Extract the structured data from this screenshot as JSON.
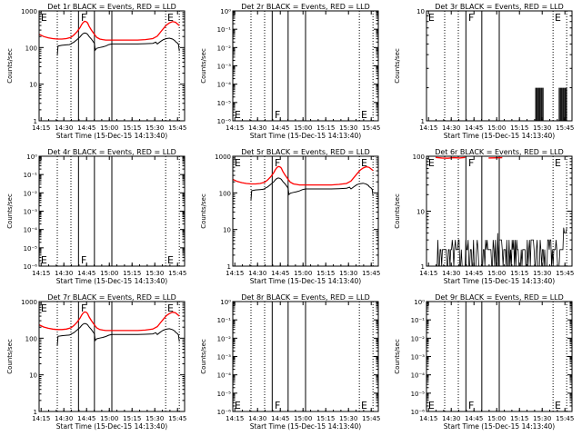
{
  "figure": {
    "xlabel": "Start Time (15-Dec-15 14:13:40)",
    "ylabel": "Counts/sec",
    "x_ticks": [
      "14:15",
      "14:30",
      "14:45",
      "15:00",
      "15:15",
      "15:30",
      "15:45"
    ],
    "x_tick_values": [
      1.33,
      16.33,
      31.33,
      46.33,
      61.33,
      76.33,
      91.33
    ],
    "xlim": [
      0,
      96
    ],
    "series_names": [
      "Events",
      "LLD"
    ],
    "colors": {
      "events": "#000000",
      "lld": "#ff0000",
      "axes": "#000000",
      "background": "#ffffff"
    },
    "markers": {
      "solid_lines": [
        26,
        36.5,
        48
      ],
      "dotted_lines": [
        12,
        21,
        83.5,
        92.5
      ],
      "labels": [
        {
          "text": "E",
          "x": 0.5
        },
        {
          "text": "F",
          "x": 27
        },
        {
          "text": "E",
          "x": 84
        }
      ]
    }
  },
  "chart_data": [
    {
      "type": "line",
      "title": "Det 1r BLACK = Events, RED = LLD",
      "yscale": "log",
      "ylim": [
        1,
        1000
      ],
      "y_ticks": [
        "1",
        "10",
        "100",
        "1000"
      ],
      "y_tick_values": [
        1,
        10,
        100,
        1000
      ],
      "marker_label_pos": "top",
      "series": [
        {
          "name": "Events",
          "x": [
            12,
            12.5,
            15,
            18,
            20,
            21,
            21.5,
            23,
            25,
            27,
            28,
            29,
            30,
            31,
            32,
            33,
            34.5,
            36.5,
            37,
            38,
            40,
            42,
            44,
            46,
            48,
            50,
            52,
            55,
            60,
            65,
            70,
            75,
            77,
            78,
            80,
            81,
            82,
            84,
            86,
            88,
            89.5,
            90,
            91.5,
            92,
            92.5
          ],
          "y": [
            60,
            110,
            115,
            118,
            120,
            125,
            130,
            140,
            165,
            195,
            220,
            240,
            250,
            245,
            230,
            200,
            170,
            130,
            85,
            95,
            100,
            104,
            110,
            120,
            125,
            125,
            125,
            125,
            125,
            125,
            127,
            130,
            140,
            125,
            145,
            155,
            165,
            175,
            180,
            170,
            155,
            145,
            130,
            120,
            80
          ]
        },
        {
          "name": "LLD",
          "x": [
            0,
            3,
            6,
            9,
            12,
            15,
            18,
            21,
            23,
            25,
            27,
            28,
            29,
            30,
            31,
            32,
            33,
            34.5,
            36.5,
            38,
            40,
            42,
            44,
            46,
            48,
            50,
            55,
            60,
            65,
            70,
            75,
            78,
            80,
            82,
            84,
            86,
            88,
            90,
            92.5
          ],
          "y": [
            230,
            200,
            185,
            175,
            170,
            170,
            175,
            190,
            220,
            270,
            350,
            420,
            480,
            520,
            510,
            470,
            380,
            300,
            230,
            190,
            170,
            165,
            160,
            160,
            160,
            160,
            160,
            160,
            160,
            165,
            175,
            205,
            260,
            330,
            410,
            470,
            510,
            490,
            400
          ]
        }
      ]
    },
    {
      "type": "line",
      "title": "Det 2r BLACK = Events, RED = LLD",
      "yscale": "log",
      "ylim": [
        1e-06,
        1
      ],
      "y_ticks": [
        "10⁰",
        "10⁻¹",
        "10⁻²",
        "10⁻³",
        "10⁻⁴",
        "10⁻⁵",
        "10⁻⁶"
      ],
      "y_tick_values": [
        1,
        0.1,
        0.01,
        0.001,
        0.0001,
        1e-05,
        1e-06
      ],
      "marker_label_pos": "bottom",
      "series": []
    },
    {
      "type": "line",
      "title": "Det 3r BLACK = Events, RED = LLD",
      "yscale": "log",
      "ylim": [
        1,
        10
      ],
      "y_ticks": [
        "1",
        "10"
      ],
      "y_tick_values": [
        1,
        10
      ],
      "marker_label_pos": "top",
      "series": [
        {
          "name": "Events",
          "x": [
            0,
            0.1
          ],
          "y": [
            1,
            1
          ],
          "kind": "spikes",
          "spike_range": [
            [
              72,
              77
            ],
            [
              87.5,
              92.5
            ]
          ],
          "spike_value": 2
        }
      ]
    },
    {
      "type": "line",
      "title": "Det 4r BLACK = Events, RED = LLD",
      "yscale": "log",
      "ylim": [
        1e-06,
        1
      ],
      "y_ticks": [
        "10⁰",
        "10⁻¹",
        "10⁻²",
        "10⁻³",
        "10⁻⁴",
        "10⁻⁵",
        "10⁻⁶"
      ],
      "y_tick_values": [
        1,
        0.1,
        0.01,
        0.001,
        0.0001,
        1e-05,
        1e-06
      ],
      "marker_label_pos": "bottom",
      "series": []
    },
    {
      "type": "line",
      "title": "Det 5r BLACK = Events, RED = LLD",
      "yscale": "log",
      "ylim": [
        1,
        1000
      ],
      "y_ticks": [
        "1",
        "10",
        "100",
        "1000"
      ],
      "y_tick_values": [
        1,
        10,
        100,
        1000
      ],
      "marker_label_pos": "top",
      "series": [
        {
          "name": "Events",
          "x": [
            12,
            12.5,
            15,
            18,
            20,
            21,
            21.5,
            23,
            25,
            27,
            28,
            29,
            30,
            31,
            32,
            33,
            34.5,
            36.5,
            37,
            38,
            40,
            42,
            44,
            46,
            48,
            50,
            52,
            55,
            60,
            65,
            70,
            75,
            77,
            78,
            80,
            81,
            82,
            84,
            86,
            88,
            89.5,
            90,
            91.5,
            92,
            92.5
          ],
          "y": [
            65,
            115,
            120,
            123,
            125,
            130,
            135,
            145,
            170,
            200,
            225,
            245,
            255,
            250,
            235,
            205,
            175,
            135,
            90,
            98,
            103,
            107,
            113,
            123,
            128,
            128,
            128,
            128,
            128,
            128,
            130,
            133,
            143,
            128,
            148,
            158,
            168,
            178,
            183,
            173,
            158,
            148,
            133,
            123,
            82
          ]
        },
        {
          "name": "LLD",
          "x": [
            0,
            3,
            6,
            9,
            12,
            15,
            18,
            21,
            23,
            25,
            27,
            28,
            29,
            30,
            31,
            32,
            33,
            34.5,
            36.5,
            38,
            40,
            42,
            44,
            46,
            48,
            50,
            55,
            60,
            65,
            70,
            75,
            78,
            80,
            82,
            84,
            86,
            88,
            90,
            92.5
          ],
          "y": [
            235,
            205,
            190,
            180,
            175,
            175,
            180,
            195,
            225,
            275,
            355,
            425,
            485,
            525,
            515,
            475,
            385,
            305,
            235,
            195,
            175,
            170,
            165,
            165,
            165,
            165,
            165,
            165,
            165,
            170,
            180,
            210,
            265,
            335,
            415,
            475,
            515,
            495,
            405
          ]
        }
      ]
    },
    {
      "type": "line",
      "title": "Det 6r BLACK = Events, RED = LLD",
      "yscale": "log",
      "ylim": [
        1,
        100
      ],
      "y_ticks": [
        "1",
        "10",
        "100"
      ],
      "y_tick_values": [
        1,
        10,
        100
      ],
      "marker_label_pos": "top",
      "series": [
        {
          "name": "Events",
          "x": [
            0,
            0.1
          ],
          "y": [
            1,
            1
          ],
          "kind": "noise",
          "noise_start": 7,
          "noise_end": 92.5
        },
        {
          "name": "LLD",
          "x": [
            6,
            10,
            14,
            18,
            22,
            25.5
          ],
          "y": [
            95,
            93,
            92,
            94,
            93,
            95
          ],
          "kind": "segments",
          "extra": [
            [
              41,
              50
            ]
          ]
        }
      ]
    },
    {
      "type": "line",
      "title": "Det 7r BLACK = Events, RED = LLD",
      "yscale": "log",
      "ylim": [
        1,
        1000
      ],
      "y_ticks": [
        "1",
        "10",
        "100",
        "1000"
      ],
      "y_tick_values": [
        1,
        10,
        100,
        1000
      ],
      "marker_label_pos": "top",
      "series": [
        {
          "name": "Events",
          "x": [
            12,
            12.5,
            15,
            18,
            20,
            21,
            21.5,
            23,
            25,
            27,
            28,
            29,
            30,
            31,
            32,
            33,
            34.5,
            36.5,
            37,
            38,
            40,
            42,
            44,
            46,
            48,
            50,
            52,
            55,
            60,
            65,
            70,
            75,
            77,
            78,
            80,
            81,
            82,
            84,
            86,
            88,
            89.5,
            90,
            91.5,
            92,
            92.5
          ],
          "y": [
            62,
            112,
            117,
            120,
            122,
            127,
            132,
            142,
            167,
            197,
            222,
            242,
            252,
            247,
            232,
            202,
            172,
            132,
            87,
            96,
            101,
            105,
            111,
            121,
            126,
            126,
            126,
            126,
            126,
            126,
            128,
            131,
            141,
            126,
            146,
            156,
            166,
            176,
            181,
            171,
            156,
            146,
            131,
            121,
            81
          ]
        },
        {
          "name": "LLD",
          "x": [
            0,
            3,
            6,
            9,
            12,
            15,
            18,
            21,
            23,
            25,
            27,
            28,
            29,
            30,
            31,
            32,
            33,
            34.5,
            36.5,
            38,
            40,
            42,
            44,
            46,
            48,
            50,
            55,
            60,
            65,
            70,
            75,
            78,
            80,
            82,
            84,
            86,
            88,
            90,
            92.5
          ],
          "y": [
            232,
            202,
            187,
            177,
            172,
            172,
            177,
            192,
            222,
            272,
            352,
            422,
            482,
            522,
            512,
            472,
            382,
            302,
            232,
            192,
            172,
            167,
            162,
            162,
            162,
            162,
            162,
            162,
            162,
            167,
            177,
            207,
            262,
            332,
            412,
            472,
            512,
            492,
            402
          ]
        }
      ]
    },
    {
      "type": "line",
      "title": "Det 8r BLACK = Events, RED = LLD",
      "yscale": "log",
      "ylim": [
        1e-06,
        1
      ],
      "y_ticks": [
        "10⁰",
        "10⁻¹",
        "10⁻²",
        "10⁻³",
        "10⁻⁴",
        "10⁻⁵",
        "10⁻⁶"
      ],
      "y_tick_values": [
        1,
        0.1,
        0.01,
        0.001,
        0.0001,
        1e-05,
        1e-06
      ],
      "marker_label_pos": "bottom",
      "series": []
    },
    {
      "type": "line",
      "title": "Det 9r BLACK = Events, RED = LLD",
      "yscale": "log",
      "ylim": [
        1e-06,
        1
      ],
      "y_ticks": [
        "10⁰",
        "10⁻¹",
        "10⁻²",
        "10⁻³",
        "10⁻⁴",
        "10⁻⁵",
        "10⁻⁶"
      ],
      "y_tick_values": [
        1,
        0.1,
        0.01,
        0.001,
        0.0001,
        1e-05,
        1e-06
      ],
      "marker_label_pos": "bottom",
      "series": []
    }
  ]
}
